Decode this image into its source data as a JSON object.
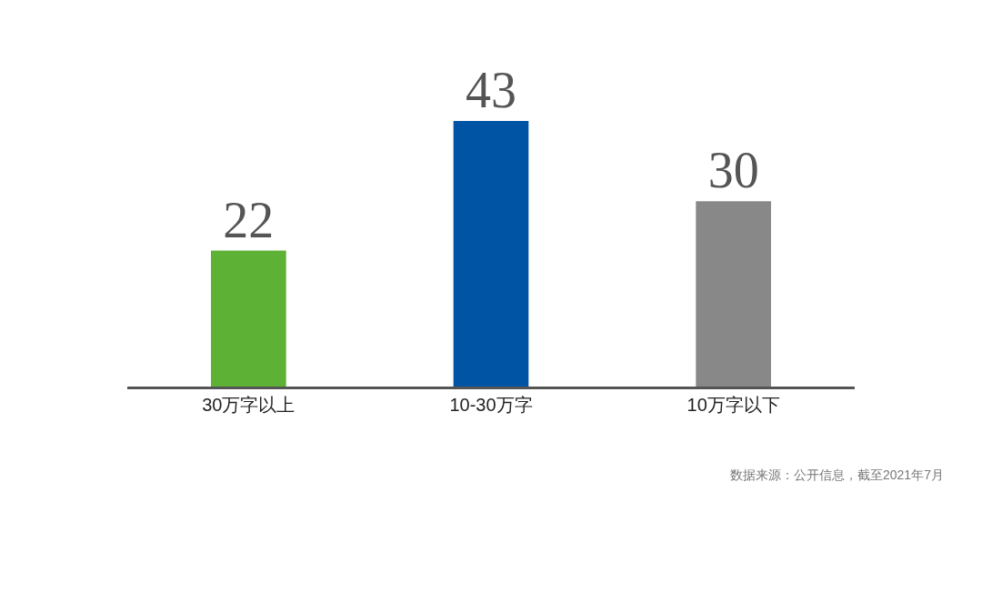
{
  "chart_data": {
    "type": "bar",
    "categories": [
      "30万字以上",
      "10-30万字",
      "10万字以下"
    ],
    "values": [
      22,
      43,
      30
    ],
    "colors": [
      "#5db135",
      "#0054a4",
      "#888888"
    ],
    "data_labels": true,
    "annotations": [
      "数据来源：公开信息，截至2021年7月"
    ]
  }
}
